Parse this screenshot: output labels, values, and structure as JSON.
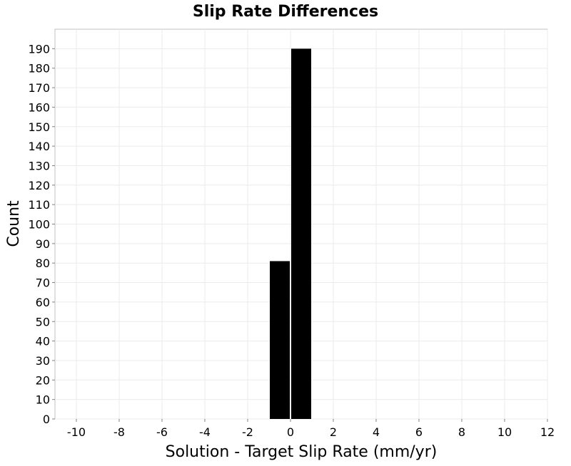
{
  "chart_data": {
    "type": "bar",
    "title": "Slip Rate Differences",
    "xlabel": "Solution - Target Slip Rate (mm/yr)",
    "ylabel": "Count",
    "xlim": [
      -11,
      12
    ],
    "ylim": [
      0,
      200
    ],
    "x_ticks": [
      -10,
      -8,
      -6,
      -4,
      -2,
      0,
      2,
      4,
      6,
      8,
      10,
      12
    ],
    "y_ticks": [
      0,
      10,
      20,
      30,
      40,
      50,
      60,
      70,
      80,
      90,
      100,
      110,
      120,
      130,
      140,
      150,
      160,
      170,
      180,
      190
    ],
    "grid": true,
    "bin_width": 1,
    "bars": [
      {
        "x_start": -1,
        "x_end": 0,
        "value": 81
      },
      {
        "x_start": 0,
        "x_end": 1,
        "value": 190
      }
    ],
    "bar_color": "#000000"
  }
}
